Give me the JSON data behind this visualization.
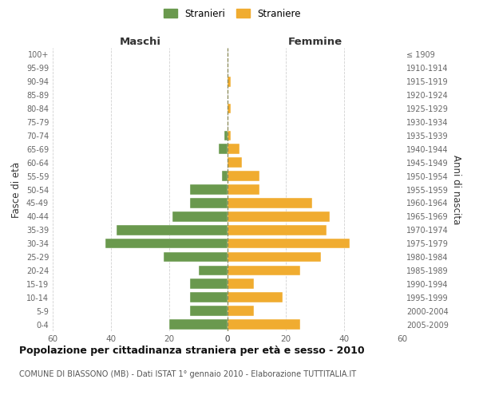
{
  "age_groups": [
    "100+",
    "95-99",
    "90-94",
    "85-89",
    "80-84",
    "75-79",
    "70-74",
    "65-69",
    "60-64",
    "55-59",
    "50-54",
    "45-49",
    "40-44",
    "35-39",
    "30-34",
    "25-29",
    "20-24",
    "15-19",
    "10-14",
    "5-9",
    "0-4"
  ],
  "birth_years": [
    "≤ 1909",
    "1910-1914",
    "1915-1919",
    "1920-1924",
    "1925-1929",
    "1930-1934",
    "1935-1939",
    "1940-1944",
    "1945-1949",
    "1950-1954",
    "1955-1959",
    "1960-1964",
    "1965-1969",
    "1970-1974",
    "1975-1979",
    "1980-1984",
    "1985-1989",
    "1990-1994",
    "1995-1999",
    "2000-2004",
    "2005-2009"
  ],
  "males": [
    0,
    0,
    0,
    0,
    0,
    0,
    1,
    3,
    0,
    2,
    13,
    13,
    19,
    38,
    42,
    22,
    10,
    13,
    13,
    13,
    20
  ],
  "females": [
    0,
    0,
    1,
    0,
    1,
    0,
    1,
    4,
    5,
    11,
    11,
    29,
    35,
    34,
    42,
    32,
    25,
    9,
    19,
    9,
    25
  ],
  "male_color": "#6a994e",
  "female_color": "#f0ac30",
  "grid_color": "#cccccc",
  "dashed_line_color": "#888855",
  "background_color": "#ffffff",
  "title": "Popolazione per cittadinanza straniera per età e sesso - 2010",
  "subtitle": "COMUNE DI BIASSONO (MB) - Dati ISTAT 1° gennaio 2010 - Elaborazione TUTTITALIA.IT",
  "ylabel_left": "Fasce di età",
  "ylabel_right": "Anni di nascita",
  "legend_male": "Stranieri",
  "legend_female": "Straniere",
  "xlim": 60,
  "maschi_label": "Maschi",
  "femmine_label": "Femmine"
}
